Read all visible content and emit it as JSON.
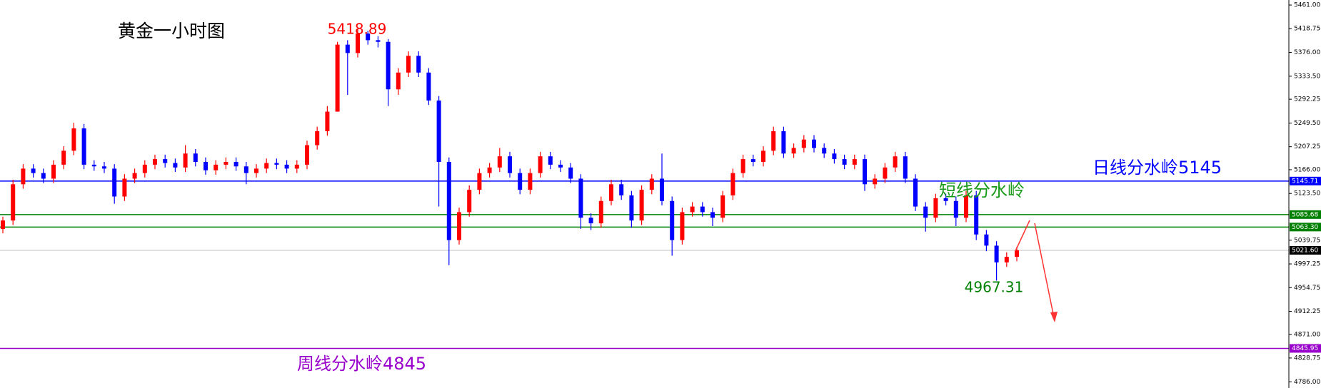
{
  "chart_data": {
    "type": "candlestick",
    "title": "黄金一小时图",
    "annotations": {
      "high": "5418.89",
      "low": "4967.31",
      "daily": "日线分水岭5145",
      "short": "短线分水岭",
      "weekly": "周线分水岭4845"
    },
    "up_color": "#ff0000",
    "down_color": "#0000ff",
    "open": [
      5060,
      5075,
      5140,
      5168,
      5160,
      5150,
      5175,
      5200,
      5240,
      5175,
      5172,
      5168,
      5118,
      5150,
      5160,
      5175,
      5185,
      5178,
      5170,
      5195,
      5180,
      5165,
      5175,
      5180,
      5172,
      5160,
      5168,
      5178,
      5175,
      5168,
      5175,
      5210,
      5235,
      5270,
      5390,
      5375,
      5410,
      5398,
      5395,
      5310,
      5340,
      5370,
      5340,
      5290,
      5180,
      5040,
      5090,
      5130,
      5160,
      5170,
      5190,
      5160,
      5130,
      5160,
      5190,
      5175,
      5170,
      5150,
      5080,
      5070,
      5110,
      5140,
      5120,
      5075,
      5130,
      5150,
      5110,
      5040,
      5090,
      5100,
      5090,
      5080,
      5120,
      5160,
      5185,
      5180,
      5200,
      5235,
      5195,
      5205,
      5220,
      5205,
      5195,
      5185,
      5175,
      5185,
      5140,
      5150,
      5170,
      5190,
      5150,
      5100,
      5080,
      5115,
      5110,
      5080,
      5120,
      5050,
      5030,
      5000,
      5010
    ],
    "high": [
      5082,
      5148,
      5176,
      5176,
      5168,
      5183,
      5208,
      5250,
      5248,
      5183,
      5180,
      5176,
      5158,
      5168,
      5183,
      5193,
      5193,
      5186,
      5210,
      5203,
      5188,
      5183,
      5188,
      5188,
      5180,
      5176,
      5186,
      5186,
      5183,
      5183,
      5218,
      5243,
      5280,
      5395,
      5398,
      5418.89,
      5415,
      5405,
      5400,
      5348,
      5378,
      5378,
      5348,
      5298,
      5188,
      5098,
      5138,
      5168,
      5178,
      5205,
      5198,
      5168,
      5168,
      5198,
      5198,
      5183,
      5178,
      5158,
      5088,
      5118,
      5148,
      5148,
      5128,
      5138,
      5158,
      5195,
      5118,
      5098,
      5108,
      5108,
      5098,
      5128,
      5168,
      5193,
      5193,
      5208,
      5243,
      5243,
      5213,
      5228,
      5228,
      5213,
      5203,
      5193,
      5193,
      5193,
      5158,
      5178,
      5198,
      5198,
      5158,
      5108,
      5123,
      5123,
      5118,
      5128,
      5128,
      5058,
      5038,
      5018,
      5028
    ],
    "low": [
      5052,
      5067,
      5132,
      5152,
      5142,
      5142,
      5167,
      5192,
      5167,
      5164,
      5160,
      5105,
      5110,
      5142,
      5152,
      5167,
      5170,
      5162,
      5162,
      5172,
      5157,
      5157,
      5167,
      5164,
      5140,
      5152,
      5160,
      5167,
      5160,
      5160,
      5167,
      5202,
      5227,
      5270,
      5300,
      5367,
      5390,
      5385,
      5280,
      5300,
      5332,
      5332,
      5282,
      5100,
      4995,
      5032,
      5082,
      5122,
      5152,
      5162,
      5152,
      5122,
      5122,
      5152,
      5167,
      5162,
      5142,
      5060,
      5058,
      5062,
      5102,
      5112,
      5062,
      5067,
      5122,
      5102,
      5012,
      5032,
      5082,
      5082,
      5065,
      5072,
      5112,
      5152,
      5172,
      5172,
      5192,
      5187,
      5187,
      5197,
      5197,
      5187,
      5177,
      5167,
      5167,
      5128,
      5132,
      5142,
      5162,
      5142,
      5092,
      5055,
      5072,
      5102,
      5065,
      5072,
      5040,
      5020,
      4967.31,
      4992,
      5002
    ],
    "close": [
      5075,
      5140,
      5168,
      5160,
      5150,
      5175,
      5200,
      5240,
      5175,
      5172,
      5168,
      5118,
      5150,
      5160,
      5175,
      5185,
      5178,
      5170,
      5195,
      5180,
      5165,
      5175,
      5180,
      5172,
      5160,
      5168,
      5178,
      5175,
      5168,
      5175,
      5210,
      5235,
      5270,
      5390,
      5375,
      5410,
      5398,
      5395,
      5310,
      5340,
      5370,
      5340,
      5290,
      5180,
      5040,
      5090,
      5130,
      5160,
      5170,
      5190,
      5160,
      5130,
      5160,
      5190,
      5175,
      5170,
      5150,
      5080,
      5070,
      5110,
      5140,
      5120,
      5075,
      5130,
      5150,
      5110,
      5040,
      5090,
      5100,
      5090,
      5080,
      5120,
      5160,
      5185,
      5180,
      5200,
      5235,
      5195,
      5205,
      5220,
      5205,
      5195,
      5185,
      5175,
      5185,
      5140,
      5150,
      5170,
      5190,
      5150,
      5100,
      5080,
      5115,
      5110,
      5080,
      5120,
      5050,
      5030,
      5000,
      5010,
      5021.6
    ],
    "levels": [
      {
        "value": 5145.71,
        "label": "5145.71",
        "color": "#0000ff"
      },
      {
        "value": 5085.68,
        "label": "5085.68",
        "color": "#008000"
      },
      {
        "value": 5063.3,
        "label": "5063.30",
        "color": "#008000"
      },
      {
        "value": 5021.6,
        "label": "5021.60",
        "color": "#c0c0c0"
      },
      {
        "value": 4845.95,
        "label": "4845.95",
        "color": "#9900cc"
      }
    ],
    "ylim": [
      4775,
      5470
    ],
    "yticks": [
      {
        "value": 5461,
        "label": "5461.00"
      },
      {
        "value": 5418.75,
        "label": "5418.75"
      },
      {
        "value": 5376,
        "label": "5376.00"
      },
      {
        "value": 5333.5,
        "label": "5333.50"
      },
      {
        "value": 5292.25,
        "label": "5292.25"
      },
      {
        "value": 5249.5,
        "label": "5249.50"
      },
      {
        "value": 5207.25,
        "label": "5207.25"
      },
      {
        "value": 5166,
        "label": "5166.00"
      },
      {
        "value": 5123.5,
        "label": "5123.50"
      },
      {
        "value": 5039.75,
        "label": "5039.75"
      },
      {
        "value": 4997.25,
        "label": "4997.25"
      },
      {
        "value": 4954.75,
        "label": "4954.75"
      },
      {
        "value": 4912.25,
        "label": "4912.25"
      },
      {
        "value": 4871,
        "label": "4871.00"
      },
      {
        "value": 4828.75,
        "label": "4828.75"
      },
      {
        "value": 4786,
        "label": "4786.00"
      }
    ]
  }
}
